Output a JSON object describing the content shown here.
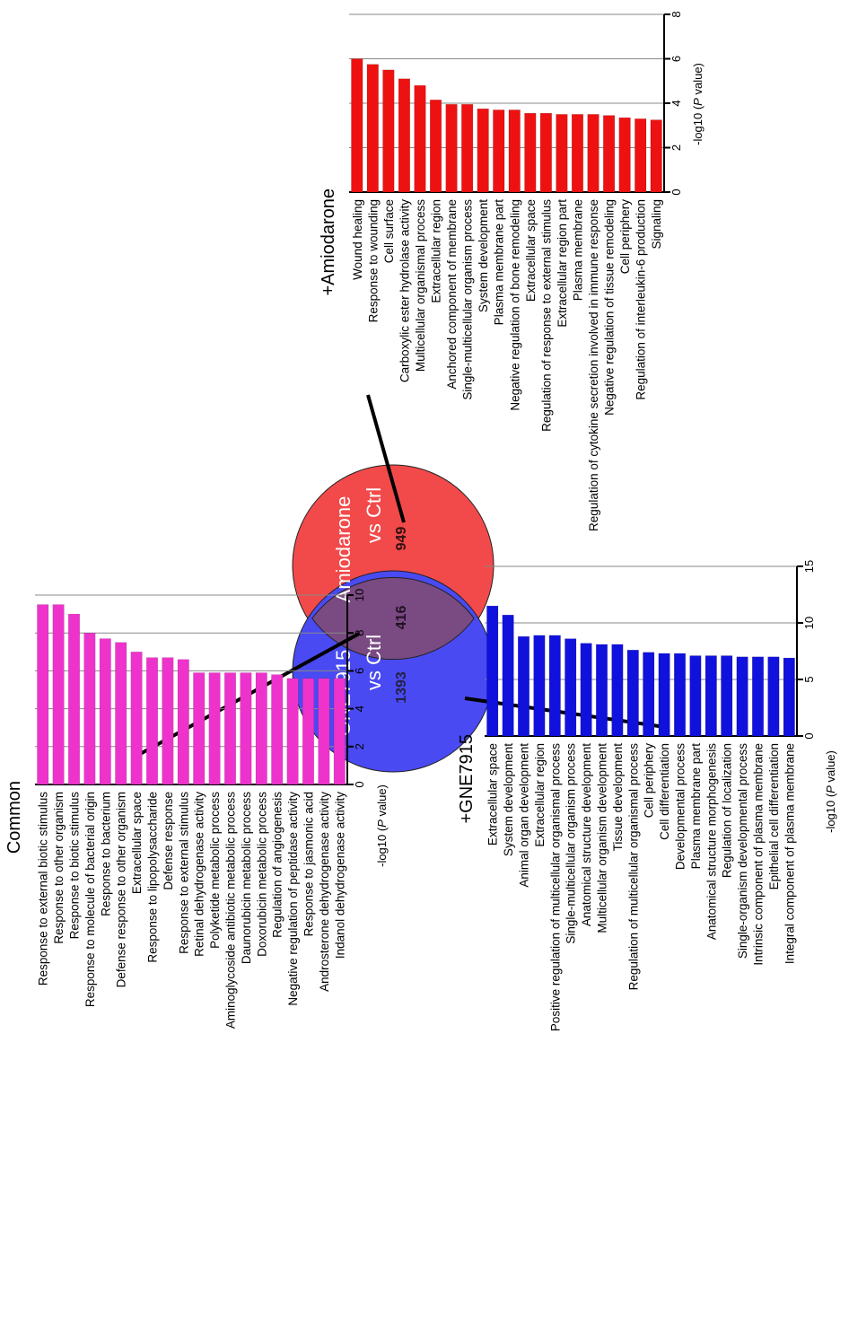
{
  "venn": {
    "left_label_1": "GNE7915",
    "left_label_2": "vs Ctrl",
    "right_label_1": "Amiodarone",
    "right_label_2": "vs Ctrl",
    "left_count": "1393",
    "overlap_count": "416",
    "right_count": "949",
    "colors": {
      "left": "#4a4af2",
      "right": "#f24a4a",
      "overlap": "#7a4a82"
    }
  },
  "chart_data": [
    {
      "type": "bar",
      "title": "+Amiodarone",
      "xlabel": "",
      "ylabel": "-log10 (P value)",
      "ylim": [
        0,
        8
      ],
      "ticks": [
        0,
        2,
        4,
        6,
        8
      ],
      "grid": true,
      "color": "#ee1111",
      "categories": [
        "Wound healing",
        "Response to wounding",
        "Cell surface",
        "Carboxylic ester hydrolase activity",
        "Multicellular organismal process",
        "Extracellular region",
        "Anchored component of membrane",
        "Single-multicellular organism process",
        "System development",
        "Plasma membrane part",
        "Negative regulation of bone remodeling",
        "Extracellular space",
        "Regulation of response to external stimulus",
        "Extracellular region part",
        "Plasma membrane",
        "Regulation of cytokine secretion involved in immune response",
        "Negative regulation of tissue remodeling",
        "Cell periphery",
        "Regulation of interleukin-6 production",
        "Signaling"
      ],
      "values": [
        6.0,
        5.75,
        5.5,
        5.1,
        4.8,
        4.15,
        3.95,
        3.95,
        3.75,
        3.7,
        3.7,
        3.55,
        3.55,
        3.5,
        3.5,
        3.5,
        3.45,
        3.35,
        3.3,
        3.25
      ]
    },
    {
      "type": "bar",
      "title": "Common",
      "xlabel": "",
      "ylabel": "-log10 (P value)",
      "ylim": [
        0,
        10
      ],
      "ticks": [
        0,
        2,
        4,
        6,
        8,
        10
      ],
      "grid": true,
      "color": "#ee33cc",
      "categories": [
        "Response to external biotic stimulus",
        "Response to other organism",
        "Response to biotic stimulus",
        "Response to molecule of bacterial origin",
        "Response to bacterium",
        "Defense response to other organism",
        "Extracellular space",
        "Response to lipopolysaccharide",
        "Defense response",
        "Response to external stimulus",
        "Retinal dehydrogenase activity",
        "Polyketide metabolic process",
        "Aminoglycoside antibiotic metabolic process",
        "Daunorubicin metabolic process",
        "Doxorubicin metabolic process",
        "Regulation of angiogenesis",
        "Negative regulation of peptidase activity",
        "Response to jasmonic acid",
        "Androsterone dehydrogenase activity",
        "Indanol dehydrogenase activity"
      ],
      "values": [
        9.5,
        9.5,
        9.0,
        8.0,
        7.7,
        7.5,
        7.0,
        6.7,
        6.7,
        6.6,
        5.9,
        5.9,
        5.9,
        5.9,
        5.9,
        5.8,
        5.6,
        5.6,
        5.6,
        5.6
      ]
    },
    {
      "type": "bar",
      "title": "+GNE7915",
      "xlabel": "",
      "ylabel": "-log10 (P value)",
      "ylim": [
        0,
        15
      ],
      "ticks": [
        0,
        5,
        10,
        15
      ],
      "grid": true,
      "color": "#1111dd",
      "categories": [
        "Extracellular space",
        "System development",
        "Animal organ development",
        "Extracellular region",
        "Positive regulation of multicellular organismal process",
        "Single-multicellular organism process",
        "Anatomical structure development",
        "Multicellular organism development",
        "Tissue development",
        "Regulation of multicellular organismal process",
        "Cell periphery",
        "Cell differentiation",
        "Developmental process",
        "Plasma membrane part",
        "Anatomical structure morphogenesis",
        "Regulation of localization",
        "Single-organism developmental process",
        "Intrinsic component of plasma membrane",
        "Epithelial cell differentiation",
        "Integral component of plasma membrane"
      ],
      "values": [
        11.5,
        10.7,
        8.8,
        8.9,
        8.9,
        8.6,
        8.2,
        8.1,
        8.1,
        7.6,
        7.4,
        7.3,
        7.3,
        7.1,
        7.1,
        7.1,
        7.0,
        7.0,
        7.0,
        6.9
      ]
    }
  ]
}
